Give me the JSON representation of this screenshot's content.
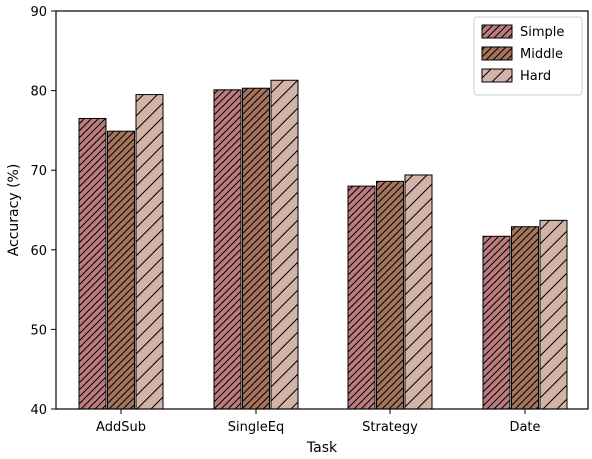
{
  "chart_data": {
    "type": "bar",
    "title": "",
    "xlabel": "Task",
    "ylabel": "Accuracy (%)",
    "categories": [
      "AddSub",
      "SingleEq",
      "Strategy",
      "Date"
    ],
    "series": [
      {
        "name": "Simple",
        "values": [
          76.5,
          80.1,
          68.0,
          61.7
        ],
        "color": "#bc7c7e",
        "hatch": "dense-diagonal"
      },
      {
        "name": "Middle",
        "values": [
          74.9,
          80.3,
          68.6,
          62.9
        ],
        "color": "#a6735c",
        "hatch": "dense-diagonal"
      },
      {
        "name": "Hard",
        "values": [
          79.5,
          81.3,
          69.4,
          63.7
        ],
        "color": "#d3b3a7",
        "hatch": "sparse-diagonal"
      }
    ],
    "ylim": [
      40,
      90
    ],
    "yticks": [
      40,
      50,
      60,
      70,
      80,
      90
    ],
    "grid": false,
    "legend_position": "top-right"
  }
}
